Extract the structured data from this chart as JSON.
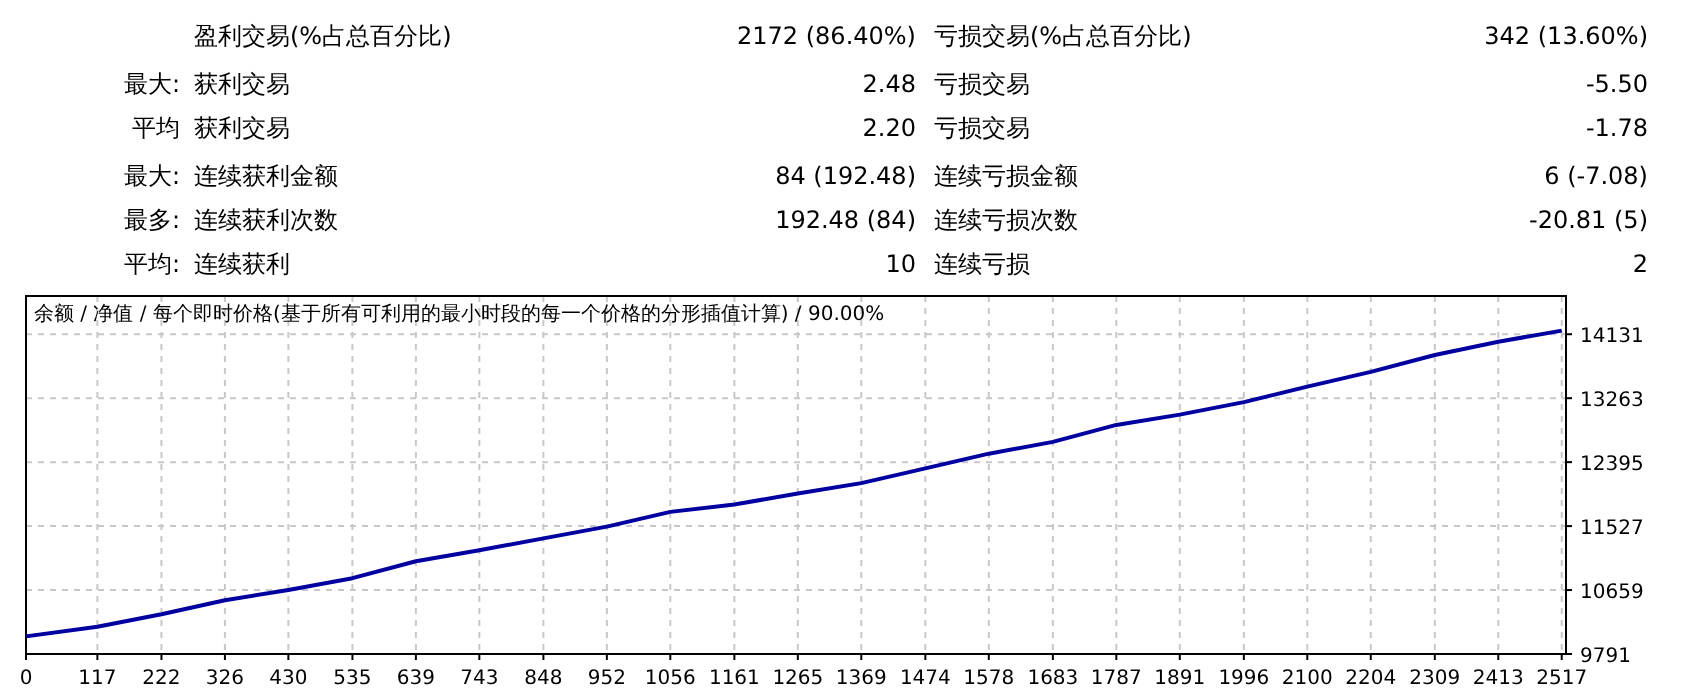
{
  "chart_data": [
    {
      "type": "other",
      "annotations": [
        "盈利交易(%占总百分比)",
        "2172 (86.40%)",
        "亏损交易(%占总百分比)",
        "342 (13.60%)",
        "最大:",
        "获利交易",
        "2.48",
        "亏损交易",
        "-5.50",
        "平均",
        "获利交易",
        "2.20",
        "亏损交易",
        "-1.78",
        "最大:",
        "连续获利金额",
        "84 (192.48)",
        "连续亏损金额",
        "6 (-7.08)",
        "最多:",
        "连续获利次数",
        "192.48 (84)",
        "连续亏损次数",
        "-20.81 (5)",
        "平均:",
        "连续获利",
        "10",
        "连续亏损",
        "2"
      ]
    },
    {
      "type": "line",
      "title": "余额 / 净值 / 每个即时价格(基于所有可利用的最小时段的每一个价格的分形插值计算) / 90.00%",
      "x": [
        0,
        117,
        222,
        326,
        430,
        535,
        639,
        743,
        848,
        952,
        1056,
        1161,
        1265,
        1369,
        1474,
        1578,
        1683,
        1787,
        1891,
        1996,
        2100,
        2204,
        2309,
        2413,
        2517
      ],
      "series": [
        {
          "color": "#0000a0",
          "values": [
            10030,
            10160,
            10330,
            10520,
            10660,
            10820,
            11050,
            11200,
            11360,
            11520,
            11720,
            11820,
            11970,
            12110,
            12310,
            12510,
            12670,
            12900,
            13040,
            13210,
            13420,
            13620,
            13850,
            14030,
            14180
          ]
        }
      ],
      "xlim": [
        0,
        2524
      ],
      "ylim": [
        9791,
        14650
      ],
      "xticks": [
        0,
        117,
        222,
        326,
        430,
        535,
        639,
        743,
        848,
        952,
        1056,
        1161,
        1265,
        1369,
        1474,
        1578,
        1683,
        1787,
        1891,
        1996,
        2100,
        2204,
        2309,
        2413,
        2517
      ],
      "yticks": [
        9791,
        10659,
        11527,
        12395,
        13263,
        14131
      ],
      "grid": true,
      "marker": "none",
      "line_style": "solid"
    }
  ]
}
